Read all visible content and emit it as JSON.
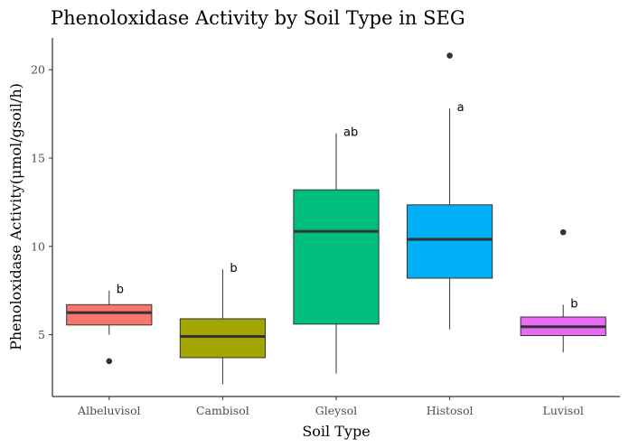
{
  "chart_data": {
    "type": "box",
    "title": "Phenoloxidase Activity by Soil Type in SEG",
    "xlabel": "Soil Type",
    "ylabel": "Phenoloxidase Activity(μmol/gsoil/h)",
    "ylim": [
      1.5,
      21.8
    ],
    "yticks": [
      5,
      10,
      15,
      20
    ],
    "grid": false,
    "legend": "none",
    "categories": [
      "Albeluvisol",
      "Cambisol",
      "Gleysol",
      "Histosol",
      "Luvisol"
    ],
    "boxes": [
      {
        "category": "Albeluvisol",
        "color": "#F8766D",
        "whisker_low": 5.0,
        "q1": 5.55,
        "median": 6.25,
        "q3": 6.7,
        "whisker_high": 7.5,
        "outliers": [
          3.5
        ],
        "sig_letter": "b"
      },
      {
        "category": "Cambisol",
        "color": "#A3A500",
        "whisker_low": 2.2,
        "q1": 3.7,
        "median": 4.9,
        "q3": 5.9,
        "whisker_high": 8.7,
        "outliers": [],
        "sig_letter": "b"
      },
      {
        "category": "Gleysol",
        "color": "#00BF7D",
        "whisker_low": 2.8,
        "q1": 5.6,
        "median": 10.85,
        "q3": 13.2,
        "whisker_high": 16.4,
        "outliers": [],
        "sig_letter": "ab"
      },
      {
        "category": "Histosol",
        "color": "#00B0F6",
        "whisker_low": 5.3,
        "q1": 8.2,
        "median": 10.4,
        "q3": 12.35,
        "whisker_high": 17.8,
        "outliers": [
          20.8
        ],
        "sig_letter": "a"
      },
      {
        "category": "Luvisol",
        "color": "#E76BF3",
        "whisker_low": 4.0,
        "q1": 4.95,
        "median": 5.45,
        "q3": 6.0,
        "whisker_high": 6.7,
        "outliers": [
          10.8
        ],
        "sig_letter": "b"
      }
    ]
  }
}
